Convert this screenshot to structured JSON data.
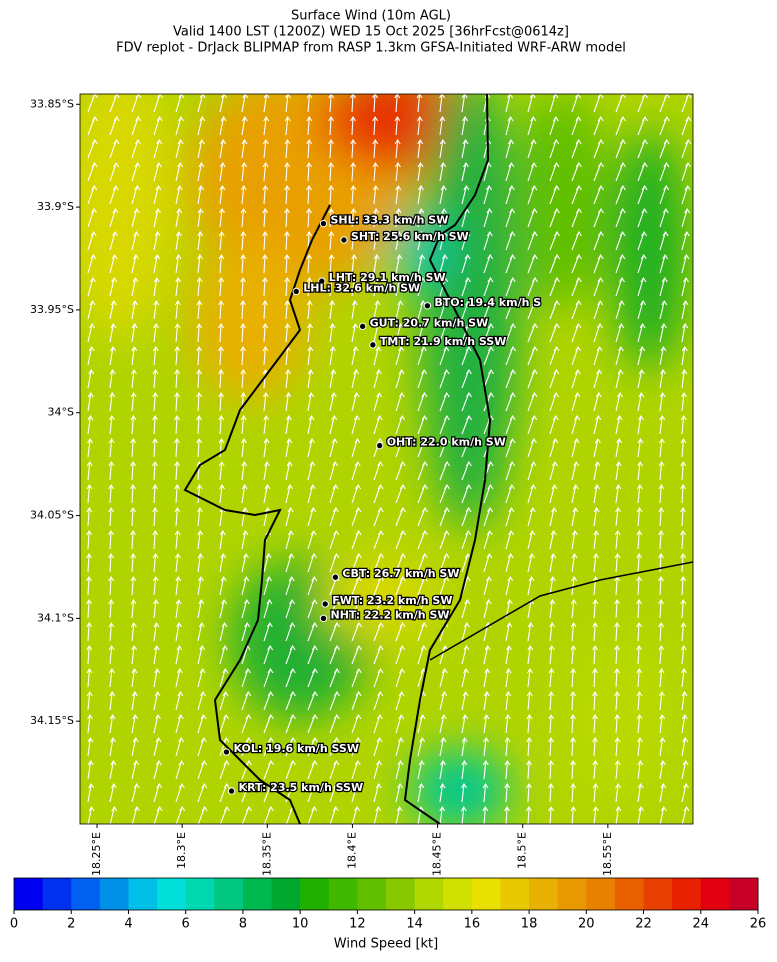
{
  "title_lines": [
    "Surface Wind (10m AGL)",
    "Valid 1400 LST (1200Z) WED 15 Oct 2025 [36hrFcst@0614z]",
    "FDV replot - DrJack BLIPMAP from RASP 1.3km GFSA-Initiated WRF-ARW model"
  ],
  "map": {
    "xlim": [
      18.24,
      18.6
    ],
    "ylim": [
      -33.845,
      -34.2
    ],
    "xticks": [
      {
        "value": 18.25,
        "label": "18.25°E"
      },
      {
        "value": 18.3,
        "label": "18.3°E"
      },
      {
        "value": 18.35,
        "label": "18.35°E"
      },
      {
        "value": 18.4,
        "label": "18.4°E"
      },
      {
        "value": 18.45,
        "label": "18.45°E"
      },
      {
        "value": 18.5,
        "label": "18.5°E"
      },
      {
        "value": 18.55,
        "label": "18.55°E"
      }
    ],
    "yticks": [
      {
        "value": -33.85,
        "label": "33.85°S"
      },
      {
        "value": -33.9,
        "label": "33.9°S"
      },
      {
        "value": -33.95,
        "label": "33.95°S"
      },
      {
        "value": -34,
        "label": "34°S"
      },
      {
        "value": -34.05,
        "label": "34.05°S"
      },
      {
        "value": -34.1,
        "label": "34.1°S"
      },
      {
        "value": -34.15,
        "label": "34.15°S"
      }
    ],
    "stations": [
      {
        "label": "SHL: 33.3 km/h SW",
        "lon": 18.383,
        "lat": -33.908
      },
      {
        "label": "SHT: 25.6 km/h SW",
        "lon": 18.395,
        "lat": -33.916
      },
      {
        "label": "LHT: 29.1 km/h SW",
        "lon": 18.382,
        "lat": -33.936
      },
      {
        "label": "LHL: 32.6 km/h SW",
        "lon": 18.367,
        "lat": -33.941
      },
      {
        "label": "BTO: 19.4 km/h S",
        "lon": 18.444,
        "lat": -33.948
      },
      {
        "label": "GUT: 20.7 km/h SW",
        "lon": 18.406,
        "lat": -33.958
      },
      {
        "label": "TMT: 21.9 km/h SSW",
        "lon": 18.412,
        "lat": -33.967
      },
      {
        "label": "OHT: 22.0 km/h SW",
        "lon": 18.416,
        "lat": -34.016
      },
      {
        "label": "CBT: 26.7 km/h SW",
        "lon": 18.39,
        "lat": -34.08
      },
      {
        "label": "FWT: 23.2 km/h SW",
        "lon": 18.384,
        "lat": -34.093
      },
      {
        "label": "NHT: 22.2 km/h SW",
        "lon": 18.383,
        "lat": -34.1
      },
      {
        "label": "KOL: 19.6 km/h SSW",
        "lon": 18.326,
        "lat": -34.165
      },
      {
        "label": "KRT: 23.5 km/h SSW",
        "lon": 18.329,
        "lat": -34.184
      }
    ]
  },
  "colorbar": {
    "label": "Wind Speed [kt]",
    "lim": [
      0,
      26
    ],
    "ticks": [
      0,
      2,
      4,
      6,
      8,
      10,
      12,
      14,
      16,
      18,
      20,
      22,
      24,
      26
    ],
    "colors": [
      "#0000f0",
      "#0030f0",
      "#0060f0",
      "#0090e8",
      "#00c0e8",
      "#00e0d8",
      "#00d8b0",
      "#00c880",
      "#00b850",
      "#00a830",
      "#20b000",
      "#40b800",
      "#60c000",
      "#88c800",
      "#b0d800",
      "#d0e000",
      "#e8e000",
      "#e8c800",
      "#e8b000",
      "#e89800",
      "#e88000",
      "#e86000",
      "#e84000",
      "#e82000",
      "#e00010",
      "#c80028"
    ]
  }
}
